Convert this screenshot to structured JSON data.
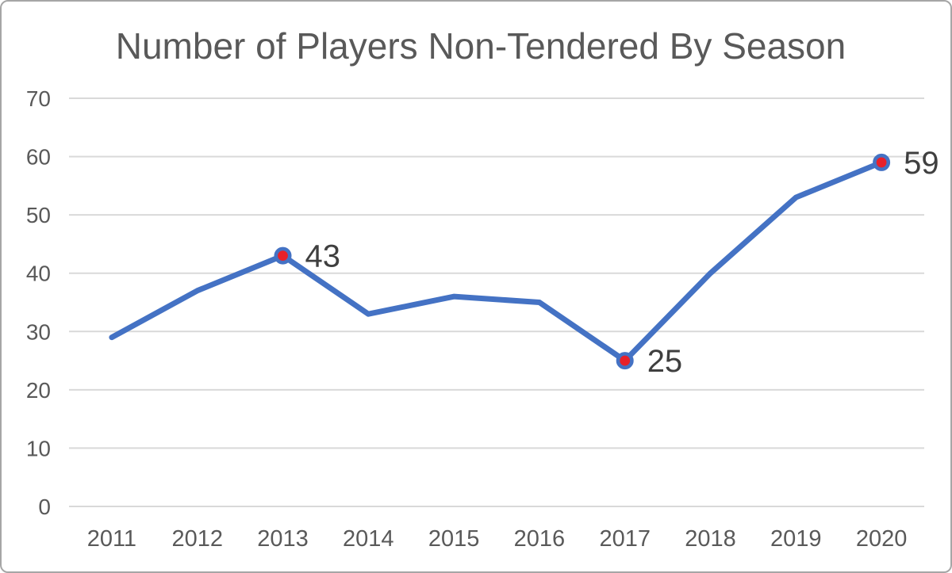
{
  "chart_data": {
    "type": "line",
    "title": "Number of Players Non-Tendered By Season",
    "categories": [
      "2011",
      "2012",
      "2013",
      "2014",
      "2015",
      "2016",
      "2017",
      "2018",
      "2019",
      "2020"
    ],
    "values": [
      29,
      37,
      43,
      33,
      36,
      35,
      25,
      40,
      53,
      59
    ],
    "labeled_points": [
      {
        "category": "2013",
        "value": 43,
        "label": "43"
      },
      {
        "category": "2017",
        "value": 25,
        "label": "25"
      },
      {
        "category": "2020",
        "value": 59,
        "label": "59"
      }
    ],
    "xlabel": "",
    "ylabel": "",
    "ylim": [
      0,
      70
    ],
    "yticks": [
      0,
      10,
      20,
      30,
      40,
      50,
      60,
      70
    ],
    "grid": true,
    "legend": false,
    "colors": {
      "line": "#4472c4",
      "marker_fill": "#e8212a",
      "marker_ring": "#4472c4",
      "gridline": "#d9d9d9",
      "axis_text": "#595959",
      "data_label": "#3f3f3f",
      "title_text": "#595959",
      "frame_border": "#a6a6a6",
      "background": "#ffffff"
    }
  }
}
